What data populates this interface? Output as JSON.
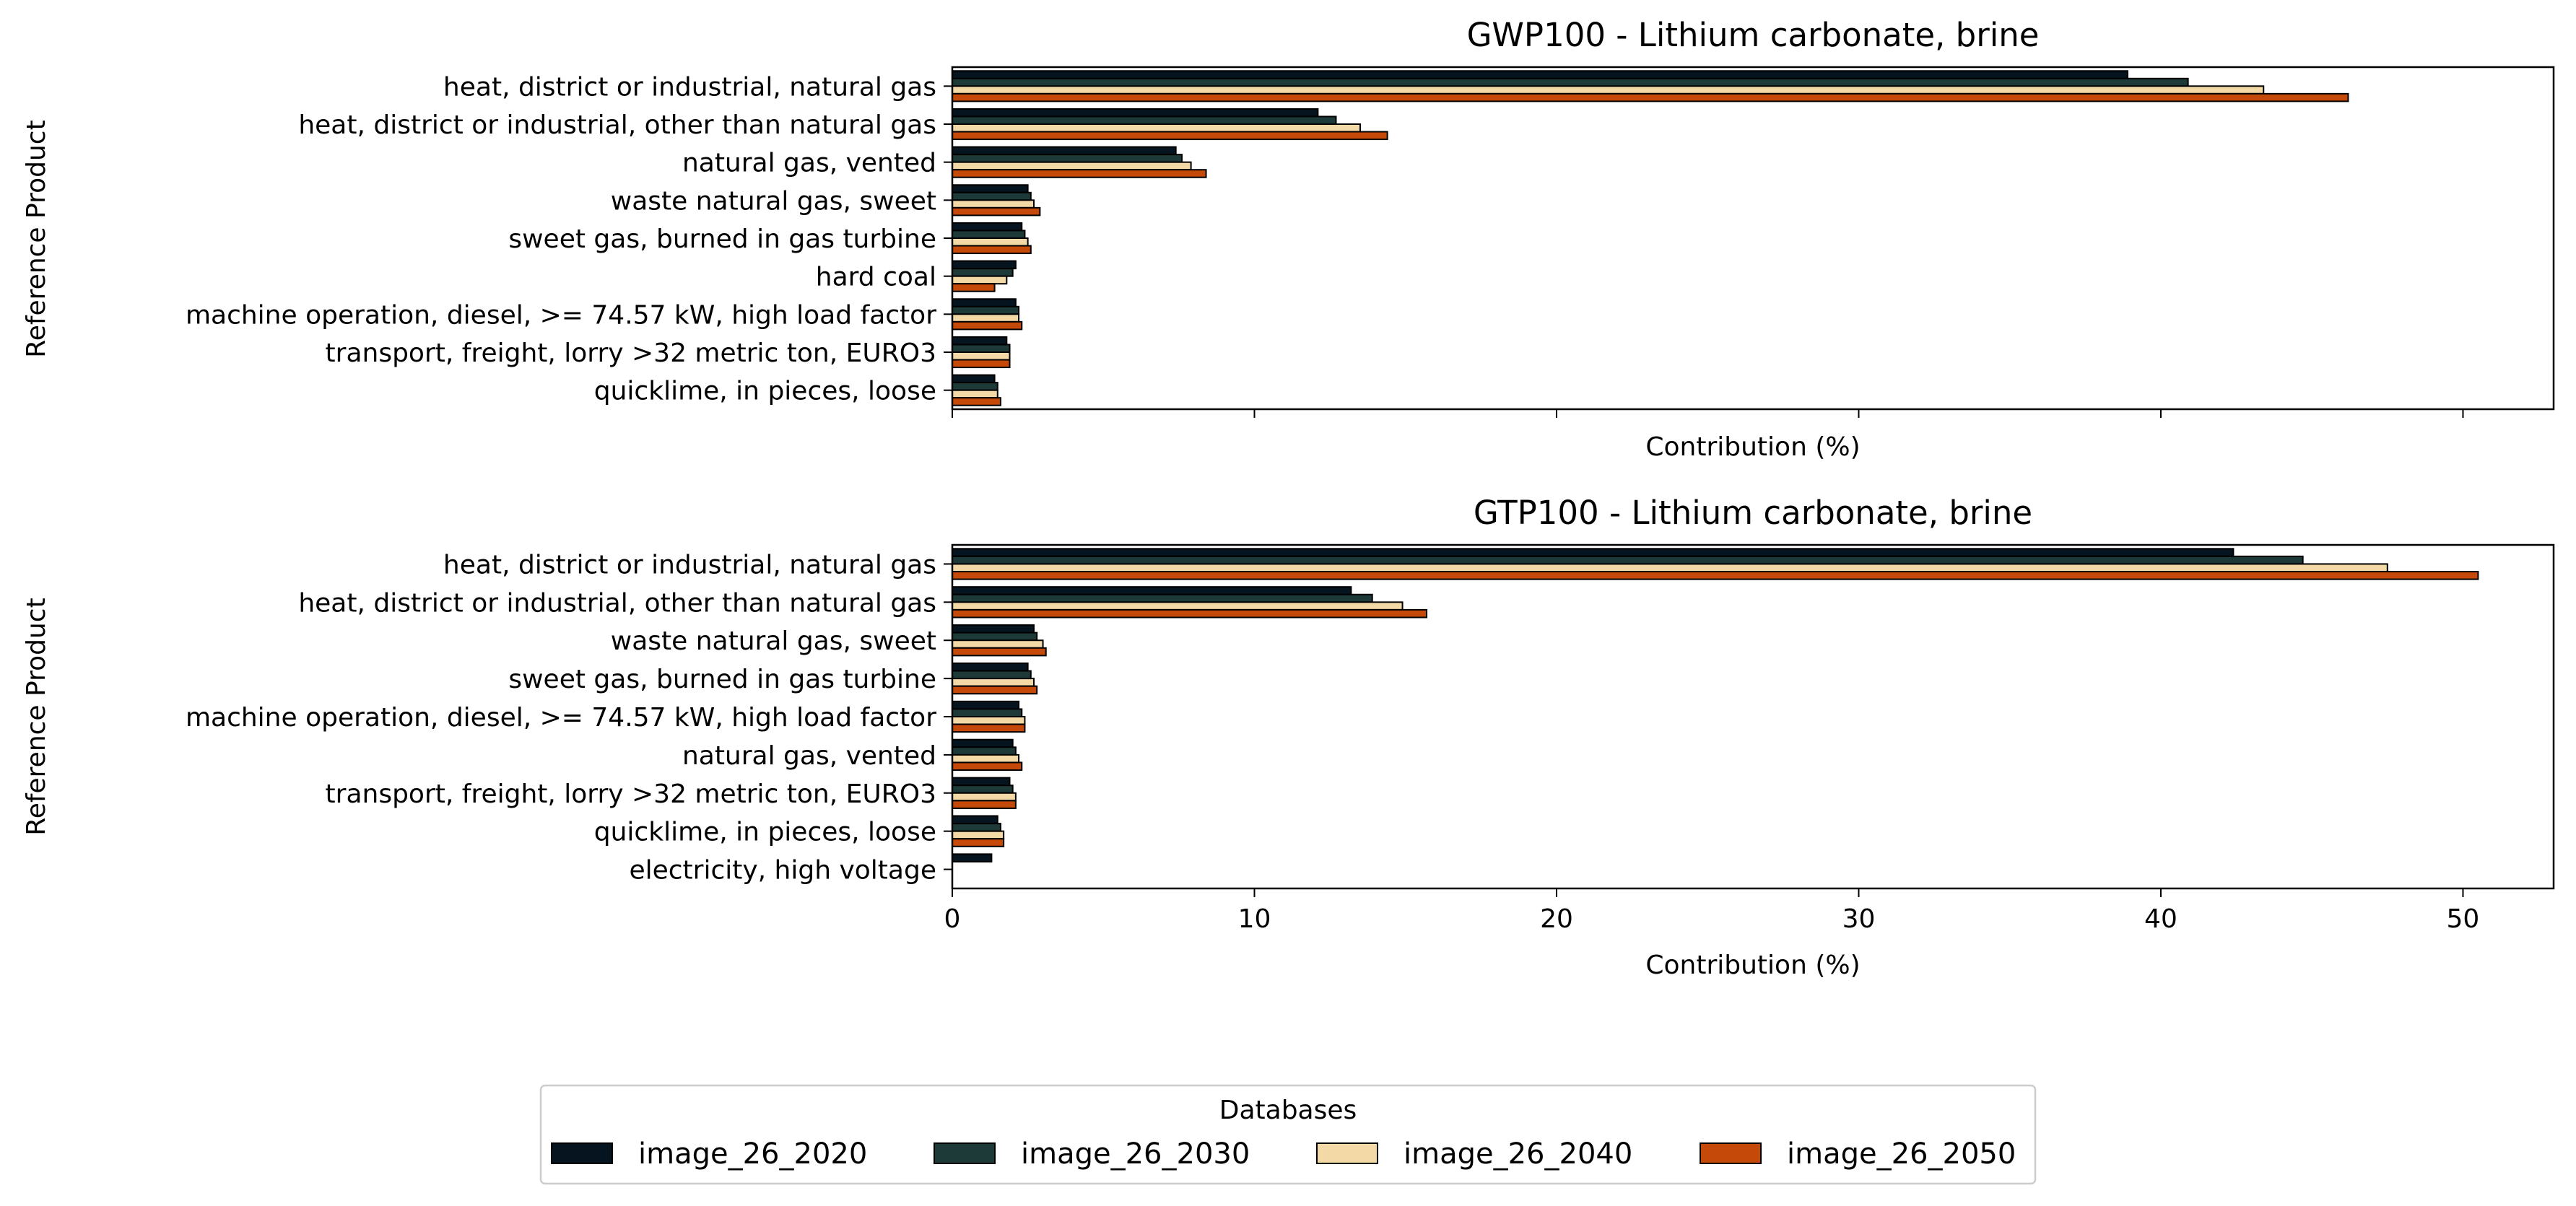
{
  "legend": {
    "title": "Databases",
    "entries": [
      "image_26_2020",
      "image_26_2030",
      "image_26_2040",
      "image_26_2050"
    ],
    "placement": "bottom-center"
  },
  "colors": [
    "#06141f",
    "#1d3a38",
    "#f3d9a6",
    "#c54909"
  ],
  "chart_data": [
    {
      "type": "bar",
      "orientation": "horizontal",
      "title": "GWP100 - Lithium carbonate, brine",
      "xlabel": "Contribution (%)",
      "ylabel": "Reference Product",
      "xlim": [
        0,
        53
      ],
      "xticks": [
        0,
        10,
        20,
        30,
        40,
        50
      ],
      "show_tick_labels": false,
      "categories": [
        "heat, district or industrial, natural gas",
        "heat, district or industrial, other than natural gas",
        "natural gas, vented",
        "waste natural gas, sweet",
        "sweet gas, burned in gas turbine",
        "hard coal",
        "machine operation, diesel, >= 74.57 kW, high load factor",
        "transport, freight, lorry >32 metric ton, EURO3",
        "quicklime, in pieces, loose"
      ],
      "series": [
        {
          "name": "image_26_2020",
          "values": [
            38.9,
            12.1,
            7.4,
            2.5,
            2.3,
            2.1,
            2.1,
            1.8,
            1.4
          ]
        },
        {
          "name": "image_26_2030",
          "values": [
            40.9,
            12.7,
            7.6,
            2.6,
            2.4,
            2.0,
            2.2,
            1.9,
            1.5
          ]
        },
        {
          "name": "image_26_2040",
          "values": [
            43.4,
            13.5,
            7.9,
            2.7,
            2.5,
            1.8,
            2.2,
            1.9,
            1.5
          ]
        },
        {
          "name": "image_26_2050",
          "values": [
            46.2,
            14.4,
            8.4,
            2.9,
            2.6,
            1.4,
            2.3,
            1.9,
            1.6
          ]
        }
      ]
    },
    {
      "type": "bar",
      "orientation": "horizontal",
      "title": "GTP100 - Lithium carbonate, brine",
      "xlabel": "Contribution (%)",
      "ylabel": "Reference Product",
      "xlim": [
        0,
        53
      ],
      "xticks": [
        0,
        10,
        20,
        30,
        40,
        50
      ],
      "show_tick_labels": true,
      "categories": [
        "heat, district or industrial, natural gas",
        "heat, district or industrial, other than natural gas",
        "waste natural gas, sweet",
        "sweet gas, burned in gas turbine",
        "machine operation, diesel, >= 74.57 kW, high load factor",
        "natural gas, vented",
        "transport, freight, lorry >32 metric ton, EURO3",
        "quicklime, in pieces, loose",
        "electricity, high voltage"
      ],
      "series": [
        {
          "name": "image_26_2020",
          "values": [
            42.4,
            13.2,
            2.7,
            2.5,
            2.2,
            2.0,
            1.9,
            1.5,
            1.3
          ]
        },
        {
          "name": "image_26_2030",
          "values": [
            44.7,
            13.9,
            2.8,
            2.6,
            2.3,
            2.1,
            2.0,
            1.6,
            0
          ]
        },
        {
          "name": "image_26_2040",
          "values": [
            47.5,
            14.9,
            3.0,
            2.7,
            2.4,
            2.2,
            2.1,
            1.7,
            0
          ]
        },
        {
          "name": "image_26_2050",
          "values": [
            50.5,
            15.7,
            3.1,
            2.8,
            2.4,
            2.3,
            2.1,
            1.7,
            0
          ]
        }
      ]
    }
  ]
}
